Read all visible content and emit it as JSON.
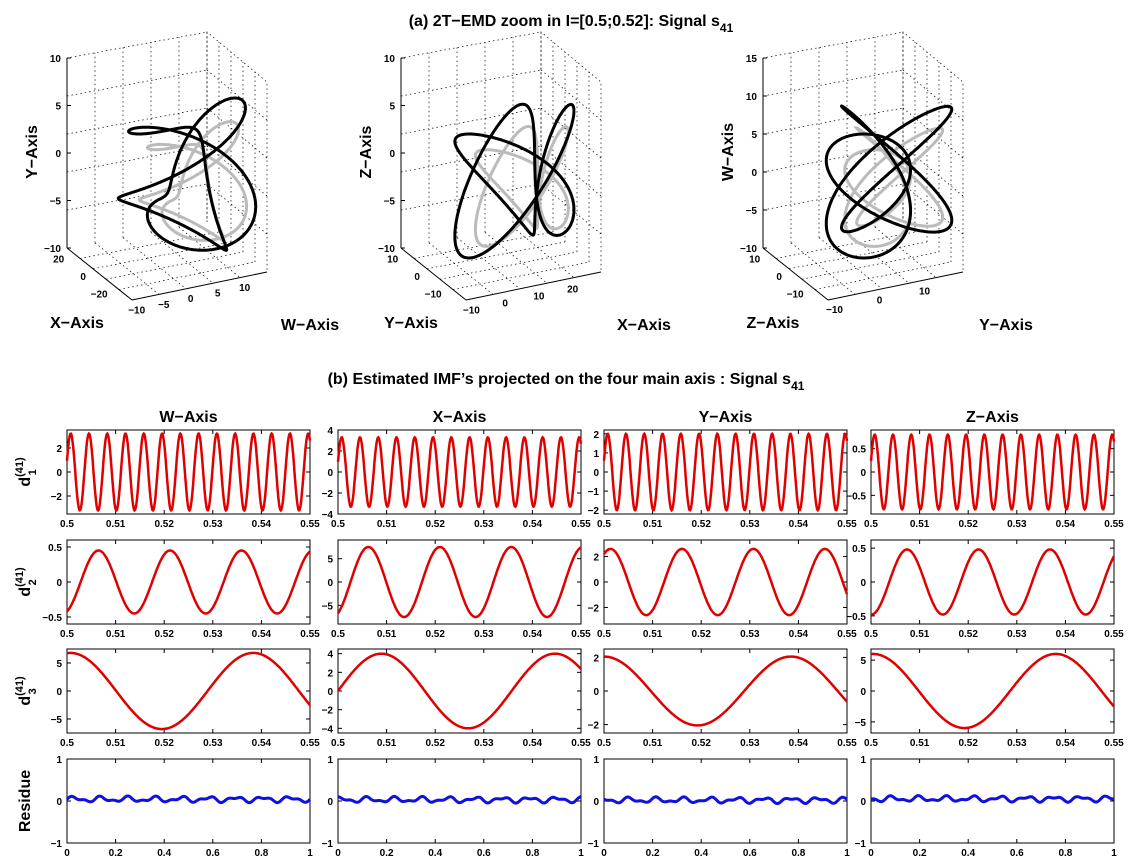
{
  "section_a": {
    "title_main": "(a) 2T−EMD zoom in I=[0.5;0.52]: Signal s",
    "title_sub": "41"
  },
  "section_b": {
    "title_main": "(b) Estimated IMF’s projected on the four main axis : Signal s",
    "title_sub": "41"
  },
  "colors": {
    "imf_curve": "#e00000",
    "residue_curve": "#1010e0",
    "trajectory_main": "#000000",
    "trajectory_shadow": "#bbbbbb",
    "grid": "#000000"
  },
  "chart_data": [
    {
      "id": "3d-wxy",
      "type": "line3d",
      "axes": {
        "vertical": {
          "label": "Y−Axis",
          "ticks": [
            "10",
            "5",
            "0",
            "−5",
            "−10"
          ]
        },
        "left": {
          "label": "X−Axis",
          "ticks": [
            "20",
            "0",
            "−20"
          ]
        },
        "right": {
          "label": "W−Axis",
          "ticks": [
            "−10",
            "−5",
            "0",
            "5",
            "10"
          ]
        }
      }
    },
    {
      "id": "3d-yxz",
      "type": "line3d",
      "axes": {
        "vertical": {
          "label": "Z−Axis",
          "ticks": [
            "10",
            "5",
            "0",
            "−5",
            "−10"
          ]
        },
        "left": {
          "label": "Y−Axis",
          "ticks": [
            "10",
            "0",
            "−10"
          ]
        },
        "right": {
          "label": "X−Axis",
          "ticks": [
            "−10",
            "0",
            "10",
            "20"
          ]
        }
      }
    },
    {
      "id": "3d-zyw",
      "type": "line3d",
      "axes": {
        "vertical": {
          "label": "W−Axis",
          "ticks": [
            "15",
            "10",
            "5",
            "0",
            "−5",
            "−10"
          ]
        },
        "left": {
          "label": "Z−Axis",
          "ticks": [
            "10",
            "0",
            "−10"
          ]
        },
        "right": {
          "label": "Y−Axis",
          "ticks": [
            "−10",
            "0",
            "10"
          ]
        }
      }
    },
    {
      "id": "imf-grid",
      "type": "line",
      "column_titles": [
        "W−Axis",
        "X−Axis",
        "Y−Axis",
        "Z−Axis"
      ],
      "row_labels": [
        {
          "main": "d",
          "sup": "(41)",
          "sub": "1"
        },
        {
          "main": "d",
          "sup": "(41)",
          "sub": "2"
        },
        {
          "main": "d",
          "sup": "(41)",
          "sub": "3"
        },
        {
          "main": "Residue",
          "sup": "",
          "sub": ""
        }
      ],
      "time_ticks": [
        "0.5",
        "0.51",
        "0.52",
        "0.53",
        "0.54",
        "0.55"
      ],
      "residue_ticks": [
        "0",
        "0.2",
        "0.4",
        "0.6",
        "0.8",
        "1"
      ],
      "panels": [
        [
          {
            "ylim": [
              -3.5,
              3.5
            ],
            "yticks": [
              -2,
              0,
              2
            ],
            "amplitude": 3.2,
            "cycles": 13.3,
            "phase": 0.3
          },
          {
            "ylim": [
              -0.6,
              0.6
            ],
            "yticks": [
              -0.5,
              0,
              0.5
            ],
            "amplitude": 0.45,
            "cycles": 3.4,
            "phase": -1.2
          },
          {
            "ylim": [
              -7.5,
              7.5
            ],
            "yticks": [
              -5,
              0,
              5
            ],
            "amplitude": 6.8,
            "cycles": 1.33,
            "phase": 1.45
          },
          {
            "ylim": [
              -1,
              1
            ],
            "yticks": [
              -1,
              0,
              1
            ],
            "level": 0.04
          }
        ],
        [
          {
            "ylim": [
              -4,
              4
            ],
            "yticks": [
              -4,
              -2,
              0,
              2,
              4
            ],
            "amplitude": 3.3,
            "cycles": 13.3,
            "phase": 0.3
          },
          {
            "ylim": [
              -9,
              9
            ],
            "yticks": [
              -5,
              0,
              5
            ],
            "amplitude": 7.5,
            "cycles": 3.4,
            "phase": -1.1
          },
          {
            "ylim": [
              -4.5,
              4.5
            ],
            "yticks": [
              -4,
              -2,
              0,
              2,
              4
            ],
            "amplitude": 4.0,
            "cycles": 1.4,
            "phase": 0.0
          },
          {
            "ylim": [
              -1,
              1
            ],
            "yticks": [
              -1,
              0,
              1
            ],
            "level": 0.03
          }
        ],
        [
          {
            "ylim": [
              -2.2,
              2.2
            ],
            "yticks": [
              -2,
              -1,
              0,
              1,
              2
            ],
            "amplitude": 2.0,
            "cycles": 13.3,
            "phase": 0.3
          },
          {
            "ylim": [
              -3.3,
              3.3
            ],
            "yticks": [
              -2,
              0,
              2
            ],
            "amplitude": 2.6,
            "cycles": 3.4,
            "phase": 1.0
          },
          {
            "ylim": [
              -2.5,
              2.5
            ],
            "yticks": [
              -2,
              0,
              2
            ],
            "amplitude": 2.05,
            "cycles": 1.3,
            "phase": 1.57
          },
          {
            "ylim": [
              -1,
              1
            ],
            "yticks": [
              -1,
              0,
              1
            ],
            "level": 0.02
          }
        ],
        [
          {
            "ylim": [
              -0.9,
              0.9
            ],
            "yticks": [
              -0.5,
              0,
              0.5
            ],
            "amplitude": 0.8,
            "cycles": 13.3,
            "phase": 0.3
          },
          {
            "ylim": [
              -0.62,
              0.62
            ],
            "yticks": [
              -0.5,
              0,
              0.5
            ],
            "amplitude": 0.48,
            "cycles": 3.4,
            "phase": -1.6
          },
          {
            "ylim": [
              -6.8,
              6.8
            ],
            "yticks": [
              -5,
              0,
              5
            ],
            "amplitude": 6.0,
            "cycles": 1.33,
            "phase": 1.5
          },
          {
            "ylim": [
              -1,
              1
            ],
            "yticks": [
              -1,
              0,
              1
            ],
            "level": 0.05
          }
        ]
      ]
    }
  ]
}
